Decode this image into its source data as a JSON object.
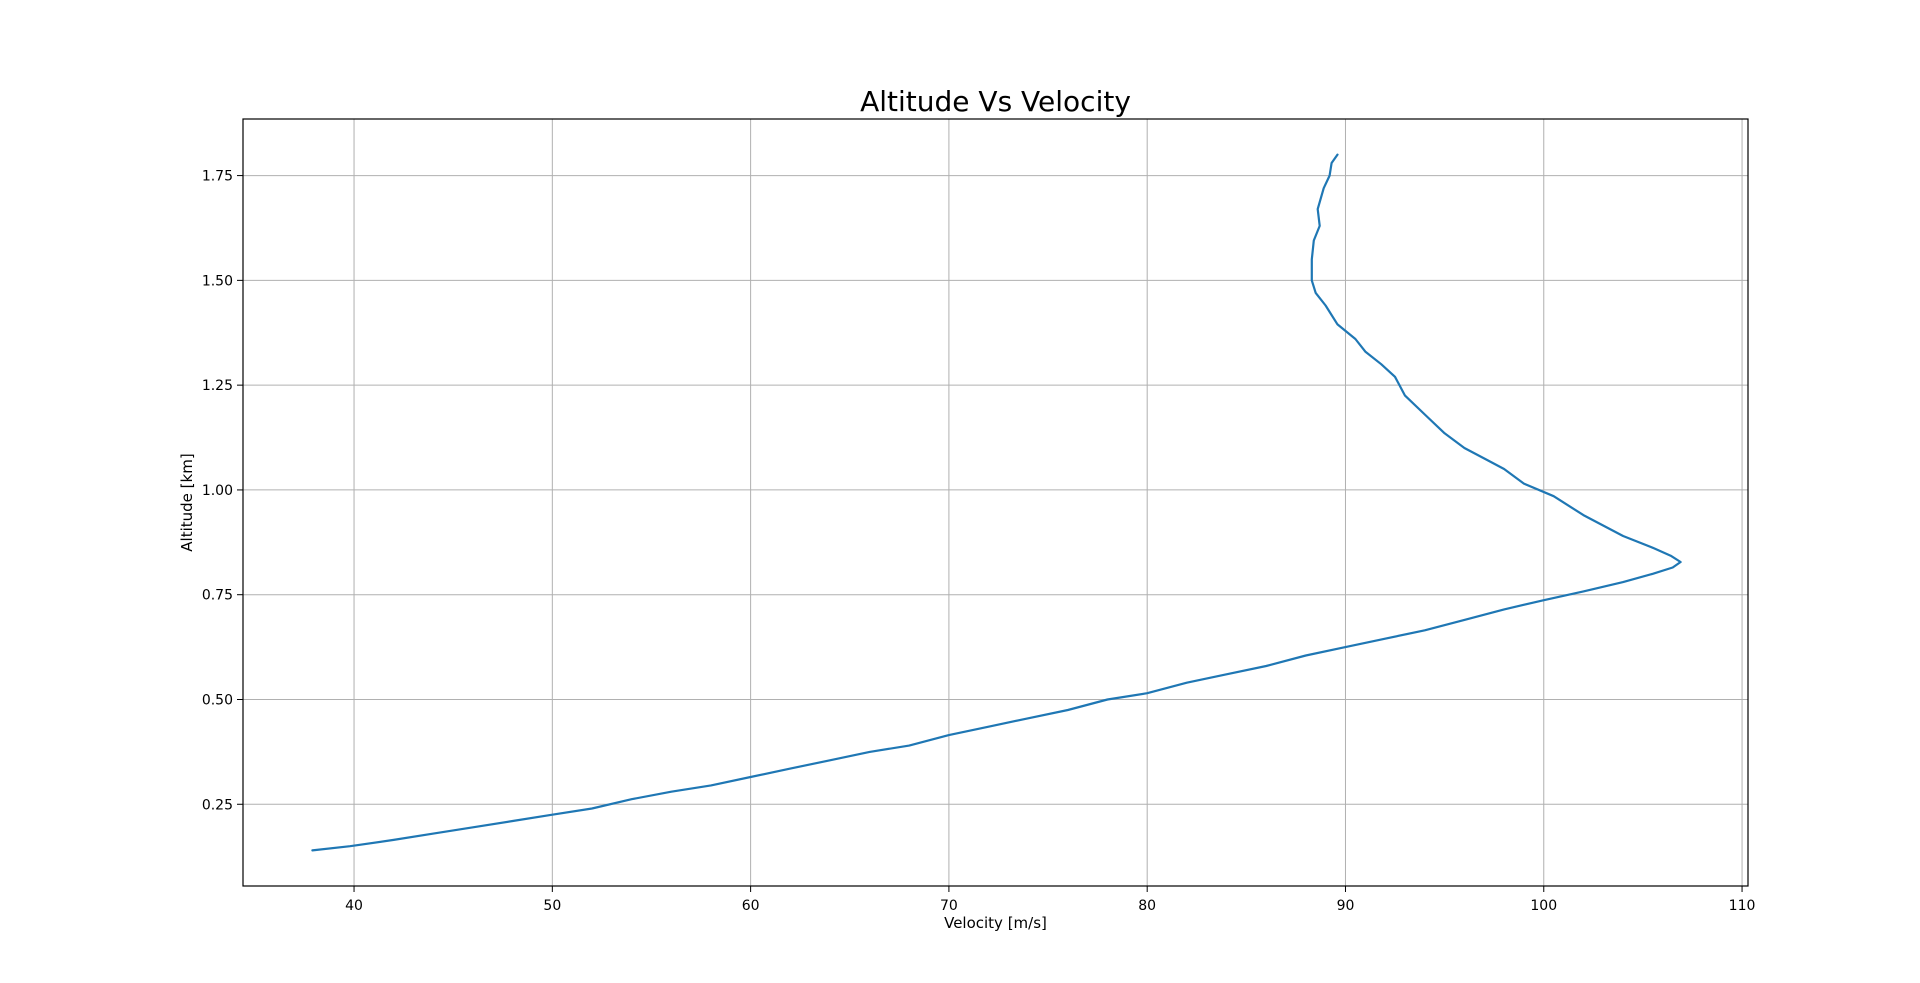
{
  "chart_data": {
    "type": "line",
    "title": "Altitude Vs Velocity",
    "xlabel": "Velocity [m/s]",
    "ylabel": "Altitude [km]",
    "xlim": [
      34.4,
      110.3
    ],
    "ylim": [
      0.055,
      1.885
    ],
    "xticks": [
      40,
      50,
      60,
      70,
      80,
      90,
      100,
      110
    ],
    "yticks": [
      0.25,
      0.5,
      0.75,
      1.0,
      1.25,
      1.5,
      1.75
    ],
    "xtick_labels": [
      "40",
      "50",
      "60",
      "70",
      "80",
      "90",
      "100",
      "110"
    ],
    "ytick_labels": [
      "0.25",
      "0.50",
      "0.75",
      "1.00",
      "1.25",
      "1.50",
      "1.75"
    ],
    "grid": true,
    "legend": "none",
    "series": [
      {
        "color": "#1f77b4",
        "points": [
          [
            37.9,
            0.14
          ],
          [
            39.8,
            0.15
          ],
          [
            42.0,
            0.165
          ],
          [
            44.0,
            0.18
          ],
          [
            46.0,
            0.195
          ],
          [
            48.0,
            0.21
          ],
          [
            50.0,
            0.225
          ],
          [
            52.0,
            0.24
          ],
          [
            54.0,
            0.262
          ],
          [
            56.0,
            0.28
          ],
          [
            58.0,
            0.295
          ],
          [
            60.0,
            0.315
          ],
          [
            62.0,
            0.335
          ],
          [
            64.0,
            0.355
          ],
          [
            66.0,
            0.375
          ],
          [
            68.0,
            0.39
          ],
          [
            70.0,
            0.415
          ],
          [
            72.0,
            0.435
          ],
          [
            74.0,
            0.455
          ],
          [
            76.0,
            0.475
          ],
          [
            78.0,
            0.5
          ],
          [
            80.0,
            0.515
          ],
          [
            82.0,
            0.54
          ],
          [
            84.0,
            0.56
          ],
          [
            86.0,
            0.58
          ],
          [
            88.0,
            0.605
          ],
          [
            90.0,
            0.625
          ],
          [
            92.0,
            0.645
          ],
          [
            94.0,
            0.665
          ],
          [
            96.0,
            0.69
          ],
          [
            98.0,
            0.715
          ],
          [
            100.0,
            0.737
          ],
          [
            102.0,
            0.758
          ],
          [
            104.0,
            0.78
          ],
          [
            105.5,
            0.8
          ],
          [
            106.5,
            0.815
          ],
          [
            106.9,
            0.828
          ],
          [
            106.4,
            0.843
          ],
          [
            105.5,
            0.862
          ],
          [
            104.0,
            0.89
          ],
          [
            102.0,
            0.94
          ],
          [
            100.5,
            0.985
          ],
          [
            99.0,
            1.015
          ],
          [
            98.0,
            1.05
          ],
          [
            97.0,
            1.075
          ],
          [
            96.0,
            1.1
          ],
          [
            95.0,
            1.135
          ],
          [
            94.0,
            1.18
          ],
          [
            93.0,
            1.225
          ],
          [
            92.5,
            1.27
          ],
          [
            91.8,
            1.3
          ],
          [
            91.0,
            1.33
          ],
          [
            90.5,
            1.36
          ],
          [
            89.6,
            1.395
          ],
          [
            89.0,
            1.44
          ],
          [
            88.5,
            1.47
          ],
          [
            88.3,
            1.5
          ],
          [
            88.3,
            1.55
          ],
          [
            88.4,
            1.595
          ],
          [
            88.7,
            1.63
          ],
          [
            88.6,
            1.67
          ],
          [
            88.9,
            1.72
          ],
          [
            89.2,
            1.75
          ],
          [
            89.3,
            1.78
          ],
          [
            89.6,
            1.8
          ]
        ]
      }
    ]
  }
}
